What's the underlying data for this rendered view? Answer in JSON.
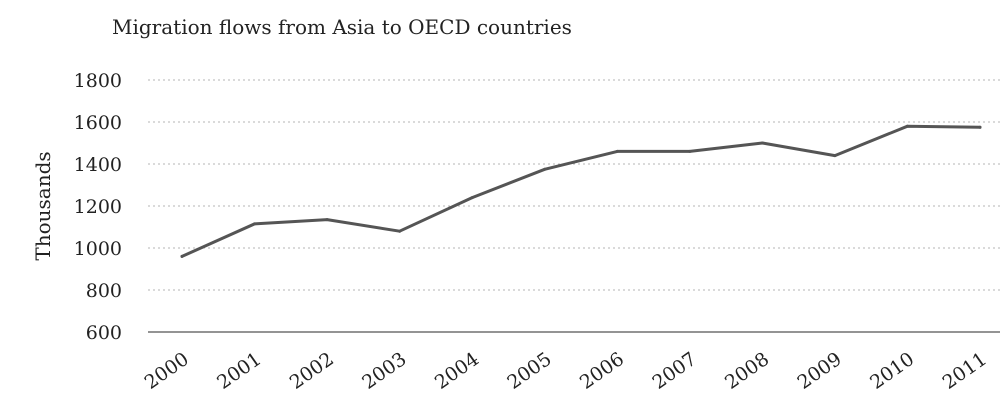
{
  "chart_data": {
    "type": "line",
    "title": "Migration flows from Asia to OECD countries",
    "xlabel": "",
    "ylabel": "Thousands",
    "categories": [
      "2000",
      "2001",
      "2002",
      "2003",
      "2004",
      "2005",
      "2006",
      "2007",
      "2008",
      "2009",
      "2010",
      "2011"
    ],
    "series": [
      {
        "values": [
          960,
          1115,
          1135,
          1080,
          1240,
          1375,
          1460,
          1460,
          1500,
          1440,
          1580,
          1575
        ]
      }
    ],
    "ylim": [
      600,
      1800
    ],
    "yticks": [
      "600",
      "800",
      "1000",
      "1200",
      "1400",
      "1600",
      "1800"
    ],
    "grid": true,
    "legend": "none",
    "colors": {
      "line": "#555555",
      "grid": "#b5b5b5",
      "axis": "#555555",
      "text": "#222222"
    }
  }
}
